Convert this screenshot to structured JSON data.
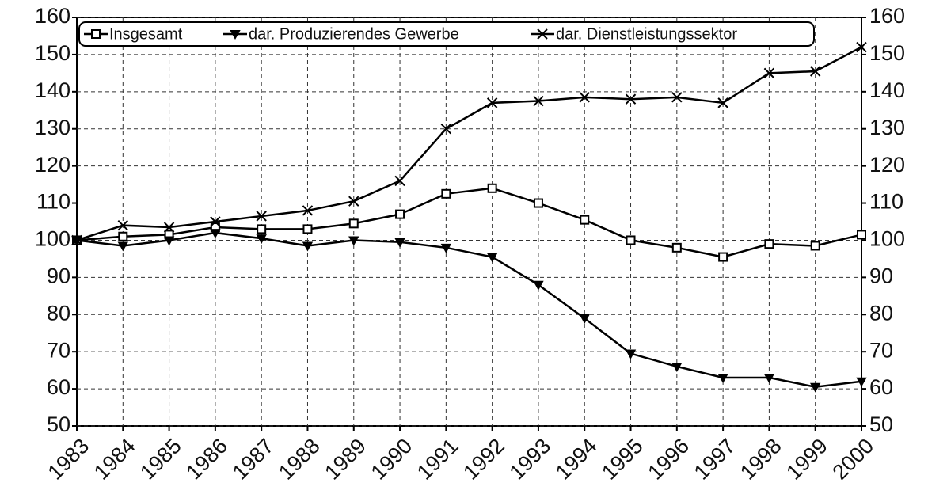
{
  "chart_data": {
    "type": "line",
    "categories": [
      "1983",
      "1984",
      "1985",
      "1986",
      "1987",
      "1988",
      "1989",
      "1990",
      "1991",
      "1992",
      "1993",
      "1994",
      "1995",
      "1996",
      "1997",
      "1998",
      "1999",
      "2000"
    ],
    "series": [
      {
        "name": "Insgesamt",
        "color": "#000000",
        "marker": "square",
        "values": [
          100,
          101,
          101.5,
          103.5,
          103,
          103,
          104.5,
          107,
          112.5,
          114,
          110,
          105.5,
          100,
          98,
          95.5,
          99,
          98.5,
          101.5
        ]
      },
      {
        "name": "dar. Produzierendes Gewerbe",
        "color": "#000000",
        "marker": "triangle-down",
        "values": [
          100,
          98.5,
          100,
          102,
          100.5,
          98.5,
          100,
          99.5,
          98,
          95.5,
          88,
          79,
          69.5,
          66,
          63,
          63,
          60.5,
          62
        ]
      },
      {
        "name": "dar. Dienstleistungssektor",
        "color": "#000000",
        "marker": "x",
        "values": [
          100,
          104,
          103.5,
          105,
          106.5,
          108,
          110.5,
          116,
          130,
          137,
          137.5,
          138.5,
          138,
          138.5,
          137,
          145,
          145.5,
          152
        ]
      }
    ],
    "ylim": [
      50,
      160
    ],
    "yticks": [
      50,
      60,
      70,
      80,
      90,
      100,
      110,
      120,
      130,
      140,
      150,
      160
    ],
    "y2lim": [
      50,
      160
    ],
    "y2ticks": [
      50,
      60,
      70,
      80,
      90,
      100,
      110,
      120,
      130,
      140,
      150,
      160
    ],
    "grid": true,
    "legend": "top"
  }
}
